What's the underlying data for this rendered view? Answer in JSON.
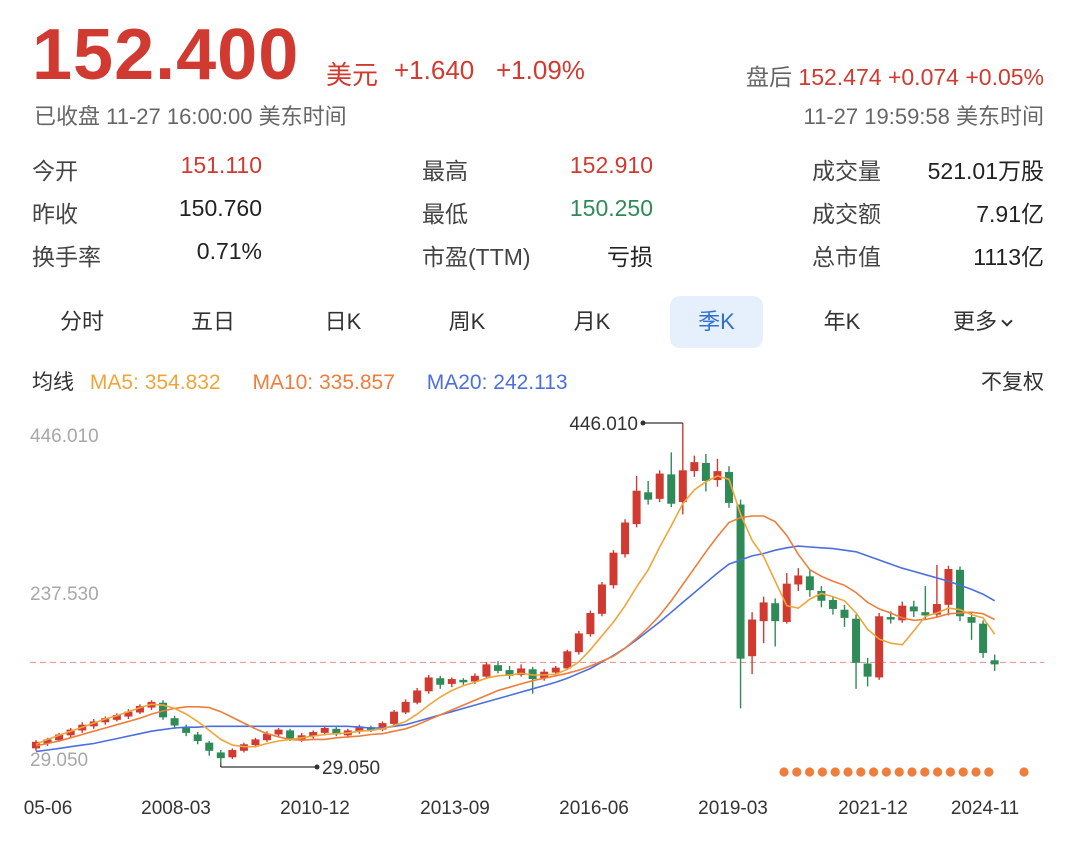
{
  "quote": {
    "price": "152.400",
    "unit": "美元",
    "change": "+1.640",
    "change_pct": "+1.09%",
    "status": "已收盘 11-27 16:00:00 美东时间",
    "after_label": "盘后",
    "after_price": "152.474",
    "after_change": "+0.074",
    "after_pct": "+0.05%",
    "after_time": "11-27 19:59:58 美东时间"
  },
  "stats": {
    "open_label": "今开",
    "open": "151.110",
    "high_label": "最高",
    "high": "152.910",
    "volume_label": "成交量",
    "volume": "521.01万股",
    "prev_label": "昨收",
    "prev": "150.760",
    "low_label": "最低",
    "low": "150.250",
    "amount_label": "成交额",
    "amount": "7.91亿",
    "turnover_label": "换手率",
    "turnover": "0.71%",
    "pe_label": "市盈(TTM)",
    "pe": "亏损",
    "mcap_label": "总市值",
    "mcap": "1113亿"
  },
  "tabs": [
    "分时",
    "五日",
    "日K",
    "周K",
    "月K",
    "季K",
    "年K",
    "更多"
  ],
  "active_tab": 5,
  "ma": {
    "title": "均线",
    "ma5": "MA5: 354.832",
    "ma10": "MA10: 335.857",
    "ma20": "MA20: 242.113",
    "fq": "不复权"
  },
  "colors": {
    "up": "#d03a30",
    "down": "#2e8b57",
    "ma5": "#f0a53a",
    "ma10": "#ef7d3c",
    "ma20": "#4c6fe0",
    "ref_line": "#e89b96",
    "active_tab_bg": "#e6f0fc",
    "active_tab_text": "#2f6fd0"
  },
  "chart_data": {
    "type": "candlestick",
    "period": "quarterly",
    "y_axis_labels": [
      "446.010",
      "237.530",
      "29.050"
    ],
    "ylim": [
      29.05,
      446.01
    ],
    "x_tick_labels": [
      "05-06",
      "2008-03",
      "2010-12",
      "2013-09",
      "2016-06",
      "2019-03",
      "2021-12",
      "2024-11"
    ],
    "max_annotation": {
      "label": "446.010",
      "value": 446.01,
      "index": 56
    },
    "min_annotation": {
      "label": "29.050",
      "value": 29.05,
      "index": 16
    },
    "reference_price": 152.4,
    "candles": [
      {
        "o": 47,
        "c": 55,
        "h": 57,
        "l": 44
      },
      {
        "o": 53,
        "c": 58,
        "h": 60,
        "l": 50
      },
      {
        "o": 57,
        "c": 64,
        "h": 66,
        "l": 55
      },
      {
        "o": 63,
        "c": 70,
        "h": 72,
        "l": 60
      },
      {
        "o": 69,
        "c": 76,
        "h": 79,
        "l": 66
      },
      {
        "o": 74,
        "c": 80,
        "h": 83,
        "l": 71
      },
      {
        "o": 79,
        "c": 84,
        "h": 86,
        "l": 76
      },
      {
        "o": 82,
        "c": 88,
        "h": 90,
        "l": 80
      },
      {
        "o": 86,
        "c": 92,
        "h": 95,
        "l": 83
      },
      {
        "o": 91,
        "c": 99,
        "h": 101,
        "l": 89
      },
      {
        "o": 97,
        "c": 104,
        "h": 106,
        "l": 94
      },
      {
        "o": 103,
        "c": 85,
        "h": 106,
        "l": 82
      },
      {
        "o": 84,
        "c": 75,
        "h": 87,
        "l": 71
      },
      {
        "o": 73,
        "c": 66,
        "h": 76,
        "l": 62
      },
      {
        "o": 64,
        "c": 56,
        "h": 67,
        "l": 52
      },
      {
        "o": 54,
        "c": 44,
        "h": 56,
        "l": 38
      },
      {
        "o": 42,
        "c": 35,
        "h": 45,
        "l": 29.05
      },
      {
        "o": 36,
        "c": 45,
        "h": 47,
        "l": 34
      },
      {
        "o": 44,
        "c": 52,
        "h": 54,
        "l": 42
      },
      {
        "o": 51,
        "c": 58,
        "h": 60,
        "l": 48
      },
      {
        "o": 57,
        "c": 65,
        "h": 68,
        "l": 55
      },
      {
        "o": 64,
        "c": 70,
        "h": 72,
        "l": 61
      },
      {
        "o": 69,
        "c": 58,
        "h": 71,
        "l": 56
      },
      {
        "o": 57,
        "c": 63,
        "h": 66,
        "l": 55
      },
      {
        "o": 62,
        "c": 67,
        "h": 69,
        "l": 59
      },
      {
        "o": 66,
        "c": 72,
        "h": 74,
        "l": 63
      },
      {
        "o": 71,
        "c": 64,
        "h": 73,
        "l": 62
      },
      {
        "o": 63,
        "c": 69,
        "h": 71,
        "l": 60
      },
      {
        "o": 68,
        "c": 74,
        "h": 76,
        "l": 65
      },
      {
        "o": 73,
        "c": 69,
        "h": 75,
        "l": 67
      },
      {
        "o": 70,
        "c": 78,
        "h": 80,
        "l": 68
      },
      {
        "o": 77,
        "c": 92,
        "h": 94,
        "l": 75
      },
      {
        "o": 91,
        "c": 104,
        "h": 107,
        "l": 89
      },
      {
        "o": 103,
        "c": 118,
        "h": 121,
        "l": 101
      },
      {
        "o": 117,
        "c": 134,
        "h": 137,
        "l": 114
      },
      {
        "o": 133,
        "c": 125,
        "h": 136,
        "l": 120
      },
      {
        "o": 126,
        "c": 132,
        "h": 134,
        "l": 122
      },
      {
        "o": 131,
        "c": 128,
        "h": 133,
        "l": 125
      },
      {
        "o": 129,
        "c": 136,
        "h": 139,
        "l": 126
      },
      {
        "o": 135,
        "c": 150,
        "h": 153,
        "l": 133
      },
      {
        "o": 149,
        "c": 142,
        "h": 154,
        "l": 139
      },
      {
        "o": 143,
        "c": 136,
        "h": 148,
        "l": 132
      },
      {
        "o": 137,
        "c": 145,
        "h": 150,
        "l": 135
      },
      {
        "o": 144,
        "c": 132,
        "h": 147,
        "l": 114
      },
      {
        "o": 133,
        "c": 141,
        "h": 144,
        "l": 130
      },
      {
        "o": 140,
        "c": 146,
        "h": 148,
        "l": 137
      },
      {
        "o": 145,
        "c": 166,
        "h": 168,
        "l": 143
      },
      {
        "o": 165,
        "c": 188,
        "h": 191,
        "l": 162
      },
      {
        "o": 187,
        "c": 213,
        "h": 216,
        "l": 184
      },
      {
        "o": 212,
        "c": 248,
        "h": 251,
        "l": 209
      },
      {
        "o": 247,
        "c": 287,
        "h": 290,
        "l": 243
      },
      {
        "o": 285,
        "c": 324,
        "h": 328,
        "l": 281
      },
      {
        "o": 322,
        "c": 363,
        "h": 381,
        "l": 318
      },
      {
        "o": 361,
        "c": 352,
        "h": 375,
        "l": 346
      },
      {
        "o": 353,
        "c": 384,
        "h": 388,
        "l": 349
      },
      {
        "o": 383,
        "c": 347,
        "h": 410,
        "l": 343
      },
      {
        "o": 349,
        "c": 388,
        "h": 446.01,
        "l": 334
      },
      {
        "o": 387,
        "c": 398,
        "h": 406,
        "l": 380
      },
      {
        "o": 397,
        "c": 375,
        "h": 408,
        "l": 362
      },
      {
        "o": 376,
        "c": 387,
        "h": 402,
        "l": 368
      },
      {
        "o": 386,
        "c": 348,
        "h": 393,
        "l": 342
      },
      {
        "o": 346,
        "c": 157,
        "h": 352,
        "l": 96
      },
      {
        "o": 160,
        "c": 205,
        "h": 214,
        "l": 138
      },
      {
        "o": 203,
        "c": 226,
        "h": 233,
        "l": 176
      },
      {
        "o": 225,
        "c": 203,
        "h": 231,
        "l": 172
      },
      {
        "o": 202,
        "c": 249,
        "h": 262,
        "l": 200
      },
      {
        "o": 248,
        "c": 259,
        "h": 268,
        "l": 240
      },
      {
        "o": 258,
        "c": 241,
        "h": 266,
        "l": 233
      },
      {
        "o": 240,
        "c": 228,
        "h": 246,
        "l": 220
      },
      {
        "o": 229,
        "c": 218,
        "h": 234,
        "l": 211
      },
      {
        "o": 217,
        "c": 207,
        "h": 223,
        "l": 196
      },
      {
        "o": 206,
        "c": 152,
        "h": 211,
        "l": 120
      },
      {
        "o": 151,
        "c": 135,
        "h": 158,
        "l": 123
      },
      {
        "o": 134,
        "c": 209,
        "h": 213,
        "l": 131
      },
      {
        "o": 208,
        "c": 205,
        "h": 215,
        "l": 200
      },
      {
        "o": 204,
        "c": 222,
        "h": 227,
        "l": 201
      },
      {
        "o": 221,
        "c": 215,
        "h": 228,
        "l": 208
      },
      {
        "o": 214,
        "c": 210,
        "h": 246,
        "l": 205
      },
      {
        "o": 211,
        "c": 224,
        "h": 272,
        "l": 208
      },
      {
        "o": 223,
        "c": 267,
        "h": 271,
        "l": 210
      },
      {
        "o": 266,
        "c": 209,
        "h": 270,
        "l": 203
      },
      {
        "o": 208,
        "c": 201,
        "h": 214,
        "l": 180
      },
      {
        "o": 200,
        "c": 164,
        "h": 204,
        "l": 158
      },
      {
        "o": 155,
        "c": 150,
        "h": 162,
        "l": 142
      }
    ],
    "ma5": [
      52,
      58,
      63,
      68,
      73,
      78,
      83,
      87,
      92,
      97,
      101,
      100,
      96,
      89,
      80,
      69,
      58,
      51,
      49,
      49,
      53,
      56,
      58,
      60,
      62,
      64,
      65,
      66,
      68,
      69,
      71,
      75,
      80,
      89,
      100,
      110,
      118,
      124,
      128,
      133,
      136,
      137,
      139,
      137,
      137,
      138,
      144,
      153,
      168,
      185,
      202,
      222,
      245,
      266,
      294,
      320,
      347,
      364,
      374,
      381,
      377,
      334,
      302,
      282,
      252,
      222,
      219,
      230,
      237,
      233,
      228,
      213,
      193,
      181,
      176,
      174,
      191,
      209,
      213,
      219,
      217,
      211,
      207,
      187
    ],
    "ma10": [
      50,
      53,
      56,
      60,
      64,
      68,
      72,
      76,
      80,
      84,
      89,
      93,
      96,
      98,
      98,
      97,
      92,
      85,
      78,
      71,
      65,
      61,
      58,
      57,
      58,
      58,
      60,
      61,
      62,
      64,
      65,
      68,
      71,
      76,
      82,
      88,
      94,
      100,
      106,
      112,
      118,
      122,
      126,
      130,
      133,
      136,
      139,
      143,
      148,
      154,
      160,
      170,
      182,
      195,
      210,
      228,
      248,
      268,
      288,
      307,
      324,
      330,
      332,
      332,
      325,
      308,
      285,
      266,
      258,
      252,
      247,
      238,
      226,
      218,
      213,
      207,
      204,
      205,
      208,
      212,
      213,
      214,
      212,
      205
    ],
    "ma20": [
      43,
      45,
      47,
      49,
      51,
      53,
      56,
      59,
      62,
      65,
      68,
      70,
      72,
      73,
      73,
      74,
      74,
      74,
      74,
      74,
      74,
      74,
      74,
      74,
      74,
      74,
      74,
      74,
      73,
      72,
      72,
      74,
      76,
      80,
      84,
      88,
      92,
      96,
      100,
      104,
      108,
      112,
      116,
      120,
      124,
      128,
      133,
      139,
      145,
      153,
      161,
      170,
      180,
      191,
      202,
      214,
      226,
      238,
      250,
      262,
      273,
      278,
      283,
      286,
      290,
      293,
      295,
      294,
      293,
      292,
      290,
      288,
      283,
      278,
      273,
      268,
      264,
      260,
      256,
      252,
      247,
      242,
      236,
      228
    ]
  }
}
